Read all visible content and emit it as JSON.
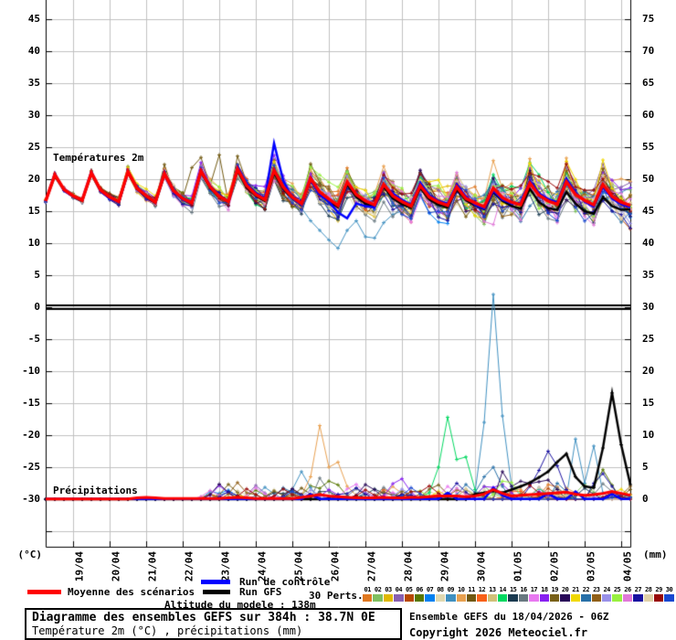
{
  "labels": {
    "temperature_panel": "Températures 2m",
    "precipitation_panel": "Précipitations"
  },
  "axes": {
    "left_unit": "(°C)",
    "right_unit": "(mm)",
    "left_ticks": [
      45,
      40,
      35,
      30,
      25,
      20,
      15,
      10,
      5,
      0,
      -5,
      -10,
      -15,
      -20,
      -25,
      -30
    ],
    "right_ticks": [
      75,
      70,
      65,
      60,
      55,
      50,
      45,
      40,
      35,
      30,
      25,
      20,
      15,
      10,
      5,
      0
    ],
    "x_ticks": [
      "19/04",
      "20/04",
      "21/04",
      "22/04",
      "23/04",
      "24/04",
      "25/04",
      "26/04",
      "27/04",
      "28/04",
      "29/04",
      "30/04",
      "01/05",
      "02/05",
      "03/05",
      "04/05"
    ]
  },
  "legend": {
    "mean_label": "Moyenne des scénarios",
    "control_label": "Run de contrôle",
    "gfs_label": "Run GFS",
    "perts_label": "30 Perts.",
    "mean_color": "#ff0000",
    "control_color": "#0000ff",
    "gfs_color": "#000000"
  },
  "footer": {
    "title": "Diagramme des ensembles GEFS sur 384h : 38.7N 0E",
    "subtitle": "Température 2m (°C) , précipitations (mm)",
    "altitude": "Altitude du modele : 138m",
    "run_info": "Ensemble GEFS du 18/04/2026 - 06Z",
    "copyright": "Copyright 2026 Meteociel.fr"
  },
  "members": {
    "ids": [
      "01",
      "02",
      "03",
      "04",
      "05",
      "06",
      "07",
      "08",
      "09",
      "10",
      "11",
      "12",
      "13",
      "14",
      "15",
      "16",
      "17",
      "18",
      "19",
      "20",
      "21",
      "22",
      "23",
      "24",
      "25",
      "26",
      "27",
      "28",
      "29",
      "30"
    ],
    "colors": [
      "#e07820",
      "#80c060",
      "#e0b800",
      "#8860b0",
      "#b84800",
      "#587800",
      "#0080f0",
      "#e0d8b0",
      "#4090c0",
      "#e8a050",
      "#705810",
      "#f86018",
      "#d0c078",
      "#00d860",
      "#1a3a50",
      "#687880",
      "#e878f0",
      "#8820f0",
      "#786018",
      "#280858",
      "#f0d800",
      "#2870a8",
      "#906018",
      "#9890e8",
      "#98f040",
      "#e078d8",
      "#1810a0",
      "#e0d0a8",
      "#980808",
      "#1848d0"
    ]
  },
  "chart_data": {
    "type": "line",
    "start_label": "18/04 06Z",
    "step_hours": 6,
    "n_points": 65,
    "temp_axis_range": [
      -30,
      45
    ],
    "precip_axis_range": [
      0,
      75
    ],
    "grid": true,
    "temperature": {
      "mean": [
        16.6,
        20.7,
        18.4,
        17.4,
        16.7,
        21.0,
        18.3,
        17.2,
        16.5,
        21.2,
        18.6,
        17.4,
        16.4,
        20.9,
        18.2,
        17.0,
        16.3,
        21.3,
        18.8,
        17.3,
        16.5,
        21.6,
        19.0,
        17.6,
        16.8,
        21.4,
        18.8,
        17.2,
        16.2,
        20.1,
        18.0,
        16.9,
        15.9,
        19.6,
        17.6,
        16.6,
        16.0,
        19.2,
        17.4,
        16.5,
        15.8,
        19.0,
        17.2,
        16.4,
        15.9,
        18.8,
        17.0,
        16.3,
        15.7,
        18.6,
        17.1,
        16.4,
        16.0,
        19.4,
        17.5,
        16.6,
        16.1,
        19.6,
        17.6,
        16.7,
        16.0,
        19.2,
        17.3,
        16.4,
        15.9
      ],
      "control": [
        16.6,
        20.9,
        18.2,
        17.3,
        16.8,
        21.2,
        18.1,
        17.0,
        16.4,
        21.0,
        18.8,
        17.5,
        16.5,
        21.1,
        18.0,
        16.8,
        16.2,
        21.5,
        19.0,
        17.4,
        16.6,
        21.9,
        19.3,
        17.9,
        17.0,
        25.6,
        19.8,
        17.0,
        16.0,
        19.8,
        17.6,
        16.5,
        14.8,
        13.9,
        16.2,
        15.8,
        15.6,
        19.0,
        17.8,
        16.8,
        16.0,
        19.5,
        17.5,
        16.6,
        16.2,
        19.2,
        17.3,
        16.0,
        15.4,
        18.2,
        16.8,
        16.2,
        16.3,
        19.8,
        17.8,
        16.9,
        16.4,
        20.1,
        17.9,
        16.5,
        15.7,
        18.8,
        17.0,
        16.1,
        15.6
      ],
      "gfs": [
        16.6,
        20.5,
        18.3,
        17.3,
        16.6,
        20.8,
        18.2,
        17.1,
        16.4,
        21.0,
        18.5,
        17.3,
        16.3,
        20.7,
        18.0,
        16.9,
        16.2,
        21.1,
        18.6,
        17.2,
        16.4,
        21.3,
        18.7,
        17.4,
        16.6,
        21.0,
        18.5,
        17.0,
        16.0,
        19.8,
        17.8,
        16.6,
        15.6,
        19.2,
        17.2,
        16.2,
        15.7,
        18.8,
        17.0,
        16.1,
        15.5,
        18.6,
        16.8,
        16.0,
        15.6,
        18.4,
        16.7,
        15.9,
        15.3,
        18.0,
        16.6,
        15.8,
        15.4,
        18.5,
        16.4,
        15.5,
        15.2,
        18.0,
        16.2,
        15.0,
        14.6,
        17.2,
        15.8,
        15.2,
        15.3
      ],
      "spread": [
        0.3,
        0.3,
        0.35,
        0.4,
        0.45,
        0.5,
        0.55,
        0.6,
        0.7,
        0.75,
        0.8,
        0.9,
        1.0,
        1.0,
        1.1,
        1.2,
        1.3,
        1.3,
        1.4,
        1.5,
        1.6,
        1.6,
        1.7,
        1.8,
        1.9,
        1.9,
        2.0,
        2.1,
        2.2,
        2.3,
        2.4,
        2.5,
        2.6,
        2.6,
        2.7,
        2.7,
        2.8,
        2.8,
        2.9,
        2.9,
        3.0,
        3.0,
        3.0,
        3.1,
        3.1,
        3.1,
        3.2,
        3.2,
        3.2,
        3.3,
        3.3,
        3.3,
        3.4,
        3.4,
        3.4,
        3.4,
        3.5,
        3.5,
        3.5,
        3.5,
        3.5,
        3.5,
        3.5,
        3.5,
        3.5
      ],
      "member_overrides": {
        "8": {
          "28": 15.5,
          "29": 13.5,
          "30": 12.0,
          "31": 10.5,
          "32": 9.2,
          "33": 12.0,
          "34": 13.5,
          "35": 11.0,
          "36": 10.8,
          "37": 13.2,
          "38": 14.5
        },
        "10": {
          "13": 22.3,
          "16": 21.8,
          "17": 23.4,
          "19": 23.8,
          "21": 23.6,
          "25": 23.0,
          "29": 22.4
        },
        "20": {
          "53": 22.5,
          "57": 22.8,
          "61": 23.0
        },
        "9": {
          "49": 22.9,
          "53": 23.2,
          "57": 23.3
        },
        "25": {
          "48": 13.4,
          "49": 12.9,
          "52": 13.6,
          "56": 13.2
        }
      }
    },
    "precipitation": {
      "mean": [
        0.05,
        0.05,
        0.05,
        0.05,
        0.05,
        0.05,
        0.05,
        0.05,
        0.05,
        0.05,
        0.2,
        0.3,
        0.2,
        0.1,
        0.1,
        0.1,
        0.1,
        0.1,
        0.1,
        0.1,
        0.2,
        0.3,
        0.2,
        0.1,
        0.1,
        0.1,
        0.1,
        0.1,
        0.3,
        0.5,
        0.7,
        0.5,
        0.4,
        0.3,
        0.2,
        0.2,
        0.2,
        0.3,
        0.2,
        0.2,
        0.3,
        0.3,
        0.4,
        0.5,
        0.5,
        0.5,
        0.4,
        0.5,
        0.8,
        1.5,
        0.9,
        0.5,
        0.6,
        0.7,
        0.8,
        0.9,
        1.0,
        1.1,
        0.8,
        0.6,
        0.7,
        0.9,
        1.2,
        0.9,
        0.6
      ],
      "control": [
        0.05,
        0.05,
        0.05,
        0.05,
        0.05,
        0.05,
        0.05,
        0.05,
        0.05,
        0.05,
        0.05,
        0.05,
        0.05,
        0.05,
        0.05,
        0.05,
        0.05,
        0.05,
        0.05,
        0.05,
        0.05,
        0.05,
        0.05,
        0.05,
        0.05,
        0.05,
        0.05,
        0.05,
        0.05,
        0.8,
        0.05,
        0.05,
        0.05,
        0.05,
        0.05,
        0.05,
        0.05,
        0.05,
        0.05,
        0.05,
        0.05,
        0.05,
        0.05,
        0.05,
        1.0,
        0.05,
        0.05,
        0.05,
        0.05,
        1.8,
        0.6,
        0.05,
        0.05,
        0.05,
        0.05,
        0.9,
        0.05,
        0.05,
        1.2,
        0.05,
        0.05,
        0.05,
        0.8,
        0.05,
        0.05
      ],
      "gfs": [
        0,
        0,
        0,
        0,
        0,
        0,
        0,
        0,
        0,
        0,
        0,
        0,
        0,
        0,
        0,
        0,
        0,
        0,
        0,
        0,
        0,
        0,
        0,
        0,
        0,
        0,
        0,
        0,
        0,
        0,
        0,
        0,
        0,
        0,
        0,
        0,
        0,
        0,
        0,
        0,
        0,
        0,
        0,
        0,
        0,
        0,
        0,
        0.8,
        1.0,
        1.3,
        1.0,
        1.5,
        2.0,
        2.6,
        3.4,
        4.3,
        5.8,
        7.1,
        3.5,
        2.0,
        1.8,
        8.0,
        16.6,
        8.5,
        2.3
      ],
      "member_spikes": {
        "8": {
          "27": 1.5,
          "28": 4.3,
          "29": 1.8,
          "47": 1.0,
          "48": 12.0,
          "49": 32.0,
          "50": 13.0,
          "51": 2.0,
          "58": 9.4,
          "59": 2.5,
          "60": 8.3,
          "61": 1.0
        },
        "9": {
          "28": 0.6,
          "29": 3.5,
          "30": 11.5,
          "31": 5.0,
          "32": 5.8,
          "33": 2.0,
          "34": 0.6
        },
        "13": {
          "42": 1.0,
          "43": 5.0,
          "44": 12.8,
          "45": 6.2,
          "46": 6.6,
          "47": 1.5
        },
        "26": {
          "53": 2.0,
          "54": 4.5,
          "55": 7.5,
          "56": 5.2,
          "57": 1.5,
          "60": 2.5,
          "61": 4.0,
          "62": 2.0
        },
        "19": {
          "50": 4.3,
          "51": 2.0,
          "55": 3.0,
          "56": 1.5
        },
        "22": {
          "20": 0.8,
          "21": 2.6,
          "22": 1.0
        },
        "5": {
          "60": 2.0,
          "61": 4.6,
          "62": 2.2
        },
        "21": {
          "48": 3.5,
          "49": 5.0,
          "50": 2.0,
          "56": 2.5,
          "57": 1.2
        },
        "16": {
          "44": 2.0,
          "45": 1.0
        },
        "6": {
          "18": 1.2,
          "19": 0.9,
          "20": 1.4,
          "21": 0.5
        },
        "15": {
          "30": 3.3,
          "31": 1.2
        }
      }
    }
  }
}
